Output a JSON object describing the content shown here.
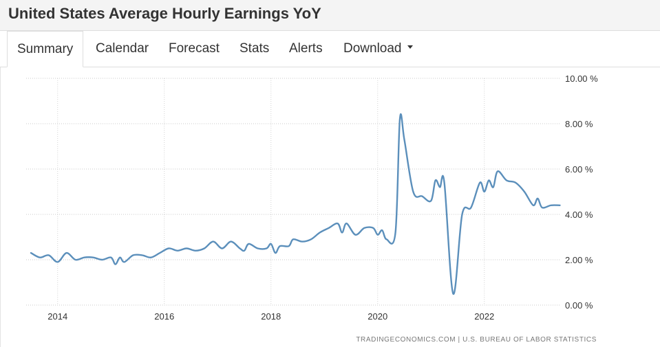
{
  "page": {
    "title": "United States Average Hourly Earnings YoY",
    "tabs": [
      {
        "label": "Summary",
        "active": true
      },
      {
        "label": "Calendar"
      },
      {
        "label": "Forecast"
      },
      {
        "label": "Stats"
      },
      {
        "label": "Alerts"
      },
      {
        "label": "Download",
        "dropdown": true
      }
    ],
    "credit": "TRADINGECONOMICS.COM  |  U.S. BUREAU OF LABOR STATISTICS"
  },
  "chart_data": {
    "type": "line",
    "title": "",
    "xlabel": "",
    "ylabel": "",
    "x_ticks": [
      "2014",
      "2016",
      "2018",
      "2020",
      "2022"
    ],
    "y_ticks": [
      "0.00 %",
      "2.00 %",
      "4.00 %",
      "6.00 %",
      "8.00 %",
      "10.00 %"
    ],
    "ylim": [
      0,
      10
    ],
    "xlim": [
      "2013-07",
      "2023-07"
    ],
    "grid": true,
    "line_color": "#5b8fbb",
    "series": [
      {
        "points": [
          [
            "2013-07",
            2.3
          ],
          [
            "2013-09",
            2.1
          ],
          [
            "2013-11",
            2.2
          ],
          [
            "2014-01",
            1.9
          ],
          [
            "2014-03",
            2.3
          ],
          [
            "2014-05",
            2.0
          ],
          [
            "2014-07",
            2.1
          ],
          [
            "2014-09",
            2.1
          ],
          [
            "2014-11",
            2.0
          ],
          [
            "2015-01",
            2.1
          ],
          [
            "2015-02",
            1.8
          ],
          [
            "2015-03",
            2.1
          ],
          [
            "2015-04",
            1.9
          ],
          [
            "2015-06",
            2.2
          ],
          [
            "2015-08",
            2.2
          ],
          [
            "2015-10",
            2.1
          ],
          [
            "2015-12",
            2.3
          ],
          [
            "2016-02",
            2.5
          ],
          [
            "2016-04",
            2.4
          ],
          [
            "2016-06",
            2.5
          ],
          [
            "2016-08",
            2.4
          ],
          [
            "2016-10",
            2.5
          ],
          [
            "2016-12",
            2.8
          ],
          [
            "2017-02",
            2.5
          ],
          [
            "2017-04",
            2.8
          ],
          [
            "2017-06",
            2.5
          ],
          [
            "2017-07",
            2.4
          ],
          [
            "2017-08",
            2.7
          ],
          [
            "2017-10",
            2.5
          ],
          [
            "2017-12",
            2.5
          ],
          [
            "2018-01",
            2.7
          ],
          [
            "2018-02",
            2.3
          ],
          [
            "2018-03",
            2.6
          ],
          [
            "2018-05",
            2.6
          ],
          [
            "2018-06",
            2.9
          ],
          [
            "2018-08",
            2.8
          ],
          [
            "2018-10",
            2.9
          ],
          [
            "2018-12",
            3.2
          ],
          [
            "2019-02",
            3.4
          ],
          [
            "2019-04",
            3.6
          ],
          [
            "2019-05",
            3.2
          ],
          [
            "2019-06",
            3.6
          ],
          [
            "2019-08",
            3.1
          ],
          [
            "2019-10",
            3.4
          ],
          [
            "2019-12",
            3.4
          ],
          [
            "2020-01",
            3.1
          ],
          [
            "2020-02",
            3.3
          ],
          [
            "2020-03",
            2.9
          ],
          [
            "2020-05",
            3.2
          ],
          [
            "2020-06",
            8.2
          ],
          [
            "2020-07",
            7.3
          ],
          [
            "2020-09",
            5.0
          ],
          [
            "2020-11",
            4.8
          ],
          [
            "2021-01",
            4.6
          ],
          [
            "2021-02",
            5.5
          ],
          [
            "2021-03",
            5.2
          ],
          [
            "2021-04",
            5.4
          ],
          [
            "2021-06",
            0.5
          ],
          [
            "2021-08",
            4.0
          ],
          [
            "2021-10",
            4.3
          ],
          [
            "2021-12",
            5.4
          ],
          [
            "2022-01",
            5.0
          ],
          [
            "2022-02",
            5.5
          ],
          [
            "2022-03",
            5.2
          ],
          [
            "2022-04",
            5.9
          ],
          [
            "2022-06",
            5.5
          ],
          [
            "2022-08",
            5.4
          ],
          [
            "2022-10",
            5.0
          ],
          [
            "2022-12",
            4.4
          ],
          [
            "2023-01",
            4.7
          ],
          [
            "2023-02",
            4.3
          ],
          [
            "2023-04",
            4.4
          ],
          [
            "2023-06",
            4.4
          ]
        ]
      }
    ]
  }
}
